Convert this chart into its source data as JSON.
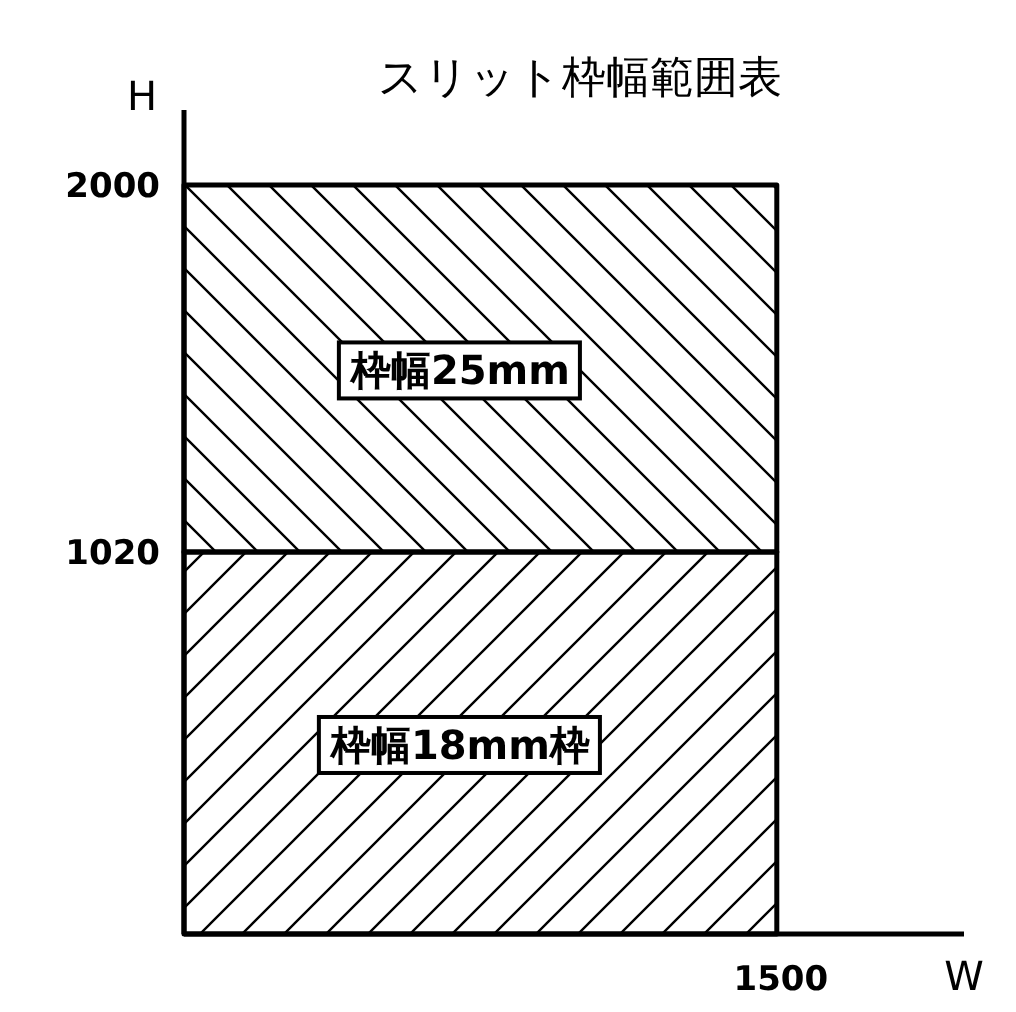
{
  "chart_data": {
    "type": "bar",
    "title": "スリット枠幅範囲表",
    "xlabel": "W",
    "ylabel": "H",
    "stacked": true,
    "categories": [
      null
    ],
    "ylim": [
      0,
      2200
    ],
    "yticks": [
      1020,
      2000
    ],
    "grid": false,
    "legend": false,
    "annotations": [
      "1500"
    ],
    "series": [
      {
        "name": "枠幅18mm枠",
        "color": "#000000",
        "values": [
          1020
        ]
      },
      {
        "name": "枠幅25mm",
        "color": "#000000",
        "values": [
          980
        ]
      }
    ]
  }
}
